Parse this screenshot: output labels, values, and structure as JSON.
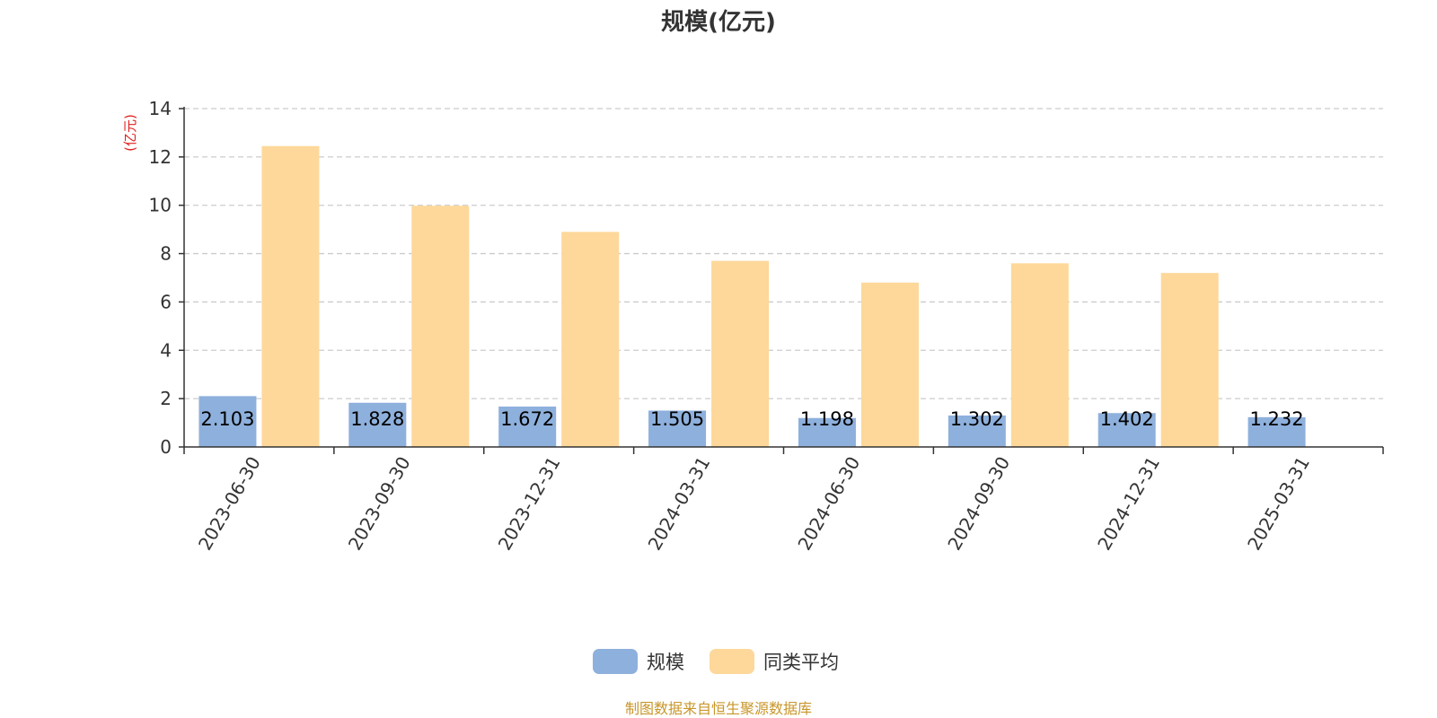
{
  "chart_data": {
    "type": "bar",
    "title": "规模(亿元)",
    "ylabel": "(亿元)",
    "xlabel": "",
    "categories": [
      "2023-06-30",
      "2023-09-30",
      "2023-12-31",
      "2024-03-31",
      "2024-06-30",
      "2024-09-30",
      "2024-12-31",
      "2025-03-31"
    ],
    "series": [
      {
        "name": "规模",
        "values": [
          2.103,
          1.828,
          1.672,
          1.505,
          1.198,
          1.302,
          1.402,
          1.232
        ],
        "color": "#8eb0dc",
        "show_labels": true
      },
      {
        "name": "同类平均",
        "values": [
          12.45,
          9.98,
          8.9,
          7.7,
          6.8,
          7.6,
          7.2,
          null
        ],
        "color": "#fdd89a",
        "show_labels": false
      }
    ],
    "ylim": [
      0,
      14
    ],
    "yticks": [
      0,
      2,
      4,
      6,
      8,
      10,
      12,
      14
    ],
    "grid": true,
    "legend_position": "bottom-center",
    "unit_color": "#e02020"
  },
  "source_text": "制图数据来自恒生聚源数据库",
  "source_color": "#c8962a"
}
